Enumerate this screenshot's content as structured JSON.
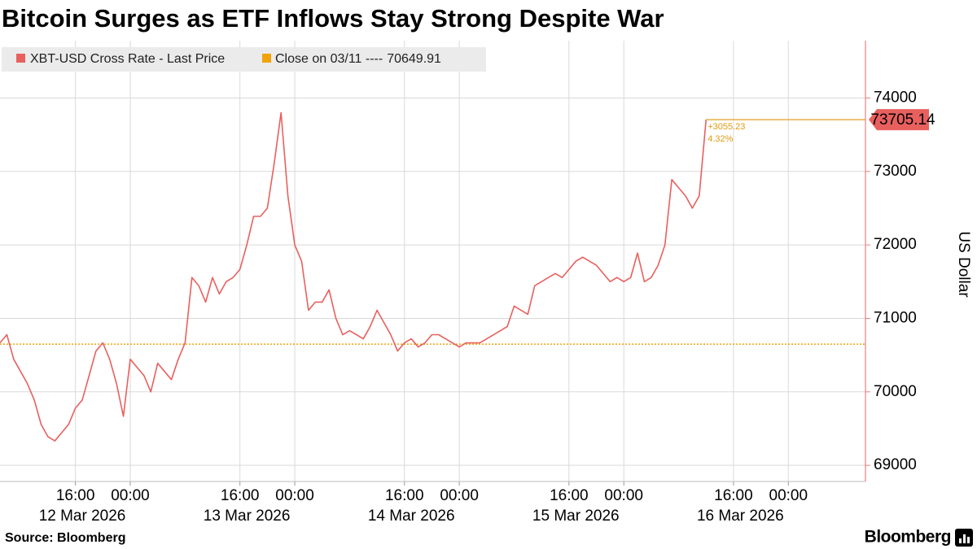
{
  "chart_data": {
    "type": "line",
    "title": "Bitcoin Surges as ETF Inflows Stay Strong Despite War",
    "x": [
      "2026-03-12T05:00",
      "2026-03-12T06:00",
      "2026-03-12T07:00",
      "2026-03-12T08:00",
      "2026-03-12T09:00",
      "2026-03-12T10:00",
      "2026-03-12T11:00",
      "2026-03-12T12:00",
      "2026-03-12T13:00",
      "2026-03-12T14:00",
      "2026-03-12T15:00",
      "2026-03-12T16:00",
      "2026-03-12T17:00",
      "2026-03-12T18:00",
      "2026-03-12T19:00",
      "2026-03-12T20:00",
      "2026-03-12T21:00",
      "2026-03-12T22:00",
      "2026-03-12T23:00",
      "2026-03-13T00:00",
      "2026-03-13T01:00",
      "2026-03-13T02:00",
      "2026-03-13T03:00",
      "2026-03-13T04:00",
      "2026-03-13T05:00",
      "2026-03-13T06:00",
      "2026-03-13T07:00",
      "2026-03-13T08:00",
      "2026-03-13T09:00",
      "2026-03-13T10:00",
      "2026-03-13T11:00",
      "2026-03-13T12:00",
      "2026-03-13T13:00",
      "2026-03-13T14:00",
      "2026-03-13T15:00",
      "2026-03-13T16:00",
      "2026-03-13T17:00",
      "2026-03-13T18:00",
      "2026-03-13T19:00",
      "2026-03-13T20:00",
      "2026-03-13T21:00",
      "2026-03-13T22:00",
      "2026-03-13T23:00",
      "2026-03-14T00:00",
      "2026-03-14T01:00",
      "2026-03-14T02:00",
      "2026-03-14T03:00",
      "2026-03-14T04:00",
      "2026-03-14T05:00",
      "2026-03-14T06:00",
      "2026-03-14T07:00",
      "2026-03-14T08:00",
      "2026-03-14T09:00",
      "2026-03-14T10:00",
      "2026-03-14T11:00",
      "2026-03-14T12:00",
      "2026-03-14T13:00",
      "2026-03-14T14:00",
      "2026-03-14T15:00",
      "2026-03-14T16:00",
      "2026-03-14T17:00",
      "2026-03-14T18:00",
      "2026-03-14T19:00",
      "2026-03-14T20:00",
      "2026-03-14T21:00",
      "2026-03-14T22:00",
      "2026-03-14T23:00",
      "2026-03-15T00:00",
      "2026-03-15T01:00",
      "2026-03-15T02:00",
      "2026-03-15T03:00",
      "2026-03-15T04:00",
      "2026-03-15T05:00",
      "2026-03-15T06:00",
      "2026-03-15T07:00",
      "2026-03-15T08:00",
      "2026-03-15T09:00",
      "2026-03-15T10:00",
      "2026-03-15T11:00",
      "2026-03-15T12:00",
      "2026-03-15T13:00",
      "2026-03-15T14:00",
      "2026-03-15T15:00",
      "2026-03-15T16:00",
      "2026-03-15T17:00",
      "2026-03-15T18:00",
      "2026-03-15T19:00",
      "2026-03-15T20:00",
      "2026-03-15T21:00",
      "2026-03-15T22:00",
      "2026-03-15T23:00",
      "2026-03-16T00:00",
      "2026-03-16T01:00",
      "2026-03-16T02:00",
      "2026-03-16T03:00",
      "2026-03-16T04:00",
      "2026-03-16T05:00",
      "2026-03-16T06:00",
      "2026-03-16T07:00",
      "2026-03-16T08:00",
      "2026-03-16T09:00",
      "2026-03-16T10:00",
      "2026-03-16T11:00",
      "2026-03-16T12:00"
    ],
    "series": [
      {
        "name": "XBT-USD Cross Rate - Last Price",
        "color": "#e8605e",
        "values": [
          70667,
          70778,
          70444,
          70278,
          70111,
          69889,
          69556,
          69389,
          69333,
          69444,
          69556,
          69778,
          69889,
          70222,
          70556,
          70667,
          70444,
          70111,
          69667,
          70444,
          70333,
          70222,
          70000,
          70389,
          70278,
          70167,
          70444,
          70667,
          71556,
          71444,
          71222,
          71556,
          71333,
          71500,
          71556,
          71667,
          72000,
          72389,
          72389,
          72500,
          73111,
          73800,
          72667,
          72000,
          71778,
          71111,
          71222,
          71222,
          71389,
          71000,
          70778,
          70833,
          70778,
          70722,
          70889,
          71111,
          70944,
          70778,
          70556,
          70667,
          70722,
          70611,
          70667,
          70778,
          70778,
          70722,
          70667,
          70611,
          70667,
          70667,
          70667,
          70722,
          70778,
          70833,
          70889,
          71167,
          71111,
          71056,
          71444,
          71500,
          71556,
          71611,
          71556,
          71667,
          71778,
          71833,
          71778,
          71722,
          71611,
          71500,
          71556,
          71500,
          71556,
          71889,
          71500,
          71556,
          71722,
          72000,
          72889,
          72778,
          72667,
          72500,
          72667,
          73705.14
        ]
      }
    ],
    "reference_line": {
      "label": "Close on 03/11 ----",
      "value": 70649.91,
      "color": "#f0a30a"
    },
    "change": {
      "value": 3055.23,
      "label": "+3055.23"
    },
    "change_pct": {
      "value": 4.32,
      "label": "4.32%"
    },
    "xlim": [
      "2026-03-12T05:00",
      "2026-03-17T11:15"
    ],
    "ylim": [
      68780,
      74780
    ],
    "yticks": [
      69000,
      70000,
      71000,
      72000,
      73000,
      74000
    ],
    "xticks": [
      {
        "value": "2026-03-12T16:00",
        "label": "16:00"
      },
      {
        "value": "2026-03-13T00:00",
        "label": "00:00"
      },
      {
        "value": "2026-03-13T16:00",
        "label": "16:00"
      },
      {
        "value": "2026-03-14T00:00",
        "label": "00:00"
      },
      {
        "value": "2026-03-14T16:00",
        "label": "16:00"
      },
      {
        "value": "2026-03-15T00:00",
        "label": "00:00"
      },
      {
        "value": "2026-03-15T16:00",
        "label": "16:00"
      },
      {
        "value": "2026-03-16T00:00",
        "label": "00:00"
      },
      {
        "value": "2026-03-16T16:00",
        "label": "16:00"
      },
      {
        "value": "2026-03-17T00:00",
        "label": "00:00"
      }
    ],
    "date_labels": [
      {
        "value": "2026-03-12T17:00",
        "label": "12 Mar 2026"
      },
      {
        "value": "2026-03-13T17:00",
        "label": "13 Mar 2026"
      },
      {
        "value": "2026-03-14T17:00",
        "label": "14 Mar 2026"
      },
      {
        "value": "2026-03-15T17:00",
        "label": "15 Mar 2026"
      },
      {
        "value": "2026-03-16T17:00",
        "label": "16 Mar 2026"
      }
    ],
    "y_label": "US Dollar",
    "y_axis_side": "right",
    "grid": true,
    "source": "Source: Bloomberg",
    "brand": "Bloomberg"
  }
}
